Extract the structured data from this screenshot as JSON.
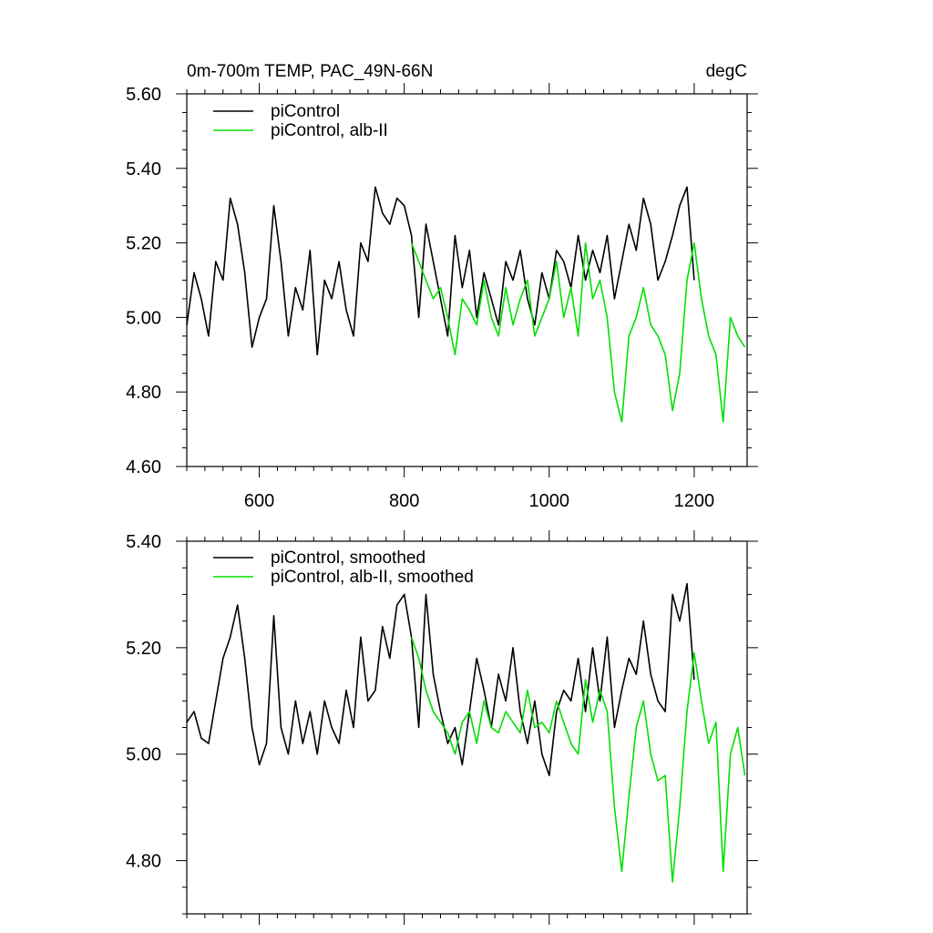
{
  "colors": {
    "control": "#000000",
    "alb": "#00e000",
    "axis": "#000000"
  },
  "chart_data": [
    {
      "type": "line",
      "title": "0m-700m TEMP, PAC_49N-66N",
      "units": "degC",
      "xlim": [
        500,
        1273
      ],
      "ylim": [
        4.6,
        5.6
      ],
      "xticks": [
        600,
        800,
        1000,
        1200
      ],
      "xtick_labels": [
        "600",
        "800",
        "1000",
        "1200"
      ],
      "yticks": [
        4.6,
        4.8,
        5.0,
        5.2,
        5.4,
        5.6
      ],
      "ytick_labels": [
        "4.60",
        "4.80",
        "5.00",
        "5.20",
        "5.40",
        "5.60"
      ],
      "series": [
        {
          "name": "piControl",
          "color": "#000000",
          "x": [
            500,
            510,
            520,
            530,
            540,
            550,
            560,
            570,
            580,
            590,
            600,
            610,
            620,
            630,
            640,
            650,
            660,
            670,
            680,
            690,
            700,
            710,
            720,
            730,
            740,
            750,
            760,
            770,
            780,
            790,
            800,
            810,
            820,
            830,
            840,
            850,
            860,
            870,
            880,
            890,
            900,
            910,
            920,
            930,
            940,
            950,
            960,
            970,
            980,
            990,
            1000,
            1010,
            1020,
            1030,
            1040,
            1050,
            1060,
            1070,
            1080,
            1090,
            1100,
            1110,
            1120,
            1130,
            1140,
            1150,
            1160,
            1170,
            1180,
            1190,
            1200
          ],
          "values": [
            4.98,
            5.12,
            5.05,
            4.95,
            5.15,
            5.1,
            5.32,
            5.25,
            5.12,
            4.92,
            5.0,
            5.05,
            5.3,
            5.15,
            4.95,
            5.08,
            5.02,
            5.18,
            4.9,
            5.1,
            5.05,
            5.15,
            5.02,
            4.95,
            5.2,
            5.15,
            5.35,
            5.28,
            5.25,
            5.32,
            5.3,
            5.22,
            5.0,
            5.25,
            5.15,
            5.05,
            4.95,
            5.22,
            5.08,
            5.18,
            5.0,
            5.12,
            5.05,
            4.98,
            5.15,
            5.1,
            5.18,
            5.05,
            4.98,
            5.12,
            5.05,
            5.18,
            5.15,
            5.08,
            5.22,
            5.1,
            5.18,
            5.12,
            5.22,
            5.05,
            5.15,
            5.25,
            5.18,
            5.32,
            5.25,
            5.1,
            5.15,
            5.22,
            5.3,
            5.35,
            5.1
          ]
        },
        {
          "name": "piControl, alb-II",
          "color": "#00e000",
          "x": [
            810,
            820,
            830,
            840,
            850,
            860,
            870,
            880,
            890,
            900,
            910,
            920,
            930,
            940,
            950,
            960,
            970,
            980,
            990,
            1000,
            1010,
            1020,
            1030,
            1040,
            1050,
            1060,
            1070,
            1080,
            1090,
            1100,
            1110,
            1120,
            1130,
            1140,
            1150,
            1160,
            1170,
            1180,
            1190,
            1200,
            1210,
            1220,
            1230,
            1240,
            1250,
            1260,
            1270
          ],
          "values": [
            5.2,
            5.15,
            5.1,
            5.05,
            5.08,
            5.0,
            4.9,
            5.05,
            5.02,
            4.98,
            5.1,
            5.0,
            4.95,
            5.08,
            4.98,
            5.05,
            5.1,
            4.95,
            5.0,
            5.05,
            5.15,
            5.0,
            5.08,
            4.95,
            5.2,
            5.05,
            5.1,
            5.0,
            4.8,
            4.72,
            4.95,
            5.0,
            5.08,
            4.98,
            4.95,
            4.9,
            4.75,
            4.85,
            5.1,
            5.2,
            5.05,
            4.95,
            4.9,
            4.72,
            5.0,
            4.95,
            4.92
          ]
        }
      ]
    },
    {
      "type": "line",
      "xlim": [
        500,
        1273
      ],
      "ylim": [
        4.7,
        5.4
      ],
      "xticks": [
        600,
        800,
        1000,
        1200
      ],
      "yticks": [
        4.8,
        5.0,
        5.2,
        5.4
      ],
      "ytick_labels": [
        "4.80",
        "5.00",
        "5.20",
        "5.40"
      ],
      "series": [
        {
          "name": "piControl, smoothed",
          "color": "#000000",
          "x": [
            500,
            510,
            520,
            530,
            540,
            550,
            560,
            570,
            580,
            590,
            600,
            610,
            620,
            630,
            640,
            650,
            660,
            670,
            680,
            690,
            700,
            710,
            720,
            730,
            740,
            750,
            760,
            770,
            780,
            790,
            800,
            810,
            820,
            830,
            840,
            850,
            860,
            870,
            880,
            890,
            900,
            910,
            920,
            930,
            940,
            950,
            960,
            970,
            980,
            990,
            1000,
            1010,
            1020,
            1030,
            1040,
            1050,
            1060,
            1070,
            1080,
            1090,
            1100,
            1110,
            1120,
            1130,
            1140,
            1150,
            1160,
            1170,
            1180,
            1190,
            1200
          ],
          "values": [
            5.06,
            5.08,
            5.03,
            5.02,
            5.1,
            5.18,
            5.22,
            5.28,
            5.18,
            5.05,
            4.98,
            5.02,
            5.26,
            5.05,
            5.0,
            5.1,
            5.02,
            5.08,
            5.0,
            5.1,
            5.05,
            5.02,
            5.12,
            5.05,
            5.22,
            5.1,
            5.12,
            5.24,
            5.18,
            5.28,
            5.3,
            5.22,
            5.05,
            5.3,
            5.15,
            5.08,
            5.02,
            5.05,
            4.98,
            5.08,
            5.18,
            5.12,
            5.05,
            5.15,
            5.1,
            5.2,
            5.08,
            5.02,
            5.1,
            5.0,
            4.96,
            5.08,
            5.12,
            5.1,
            5.18,
            5.08,
            5.2,
            5.1,
            5.22,
            5.05,
            5.12,
            5.18,
            5.15,
            5.25,
            5.15,
            5.1,
            5.08,
            5.3,
            5.25,
            5.32,
            5.14
          ]
        },
        {
          "name": "piControl, alb-II, smoothed",
          "color": "#00e000",
          "x": [
            810,
            820,
            830,
            840,
            850,
            860,
            870,
            880,
            890,
            900,
            910,
            920,
            930,
            940,
            950,
            960,
            970,
            980,
            990,
            1000,
            1010,
            1020,
            1030,
            1040,
            1050,
            1060,
            1070,
            1080,
            1090,
            1100,
            1110,
            1120,
            1130,
            1140,
            1150,
            1160,
            1170,
            1180,
            1190,
            1200,
            1210,
            1220,
            1230,
            1240,
            1250,
            1260,
            1270
          ],
          "values": [
            5.22,
            5.18,
            5.12,
            5.08,
            5.06,
            5.04,
            5.0,
            5.06,
            5.08,
            5.02,
            5.1,
            5.05,
            5.04,
            5.08,
            5.06,
            5.04,
            5.12,
            5.05,
            5.06,
            5.04,
            5.1,
            5.06,
            5.02,
            5.0,
            5.14,
            5.06,
            5.12,
            5.08,
            4.9,
            4.78,
            4.92,
            5.05,
            5.1,
            5.0,
            4.95,
            4.96,
            4.76,
            4.9,
            5.08,
            5.19,
            5.1,
            5.02,
            5.06,
            4.78,
            5.0,
            5.05,
            4.96
          ]
        }
      ]
    }
  ]
}
